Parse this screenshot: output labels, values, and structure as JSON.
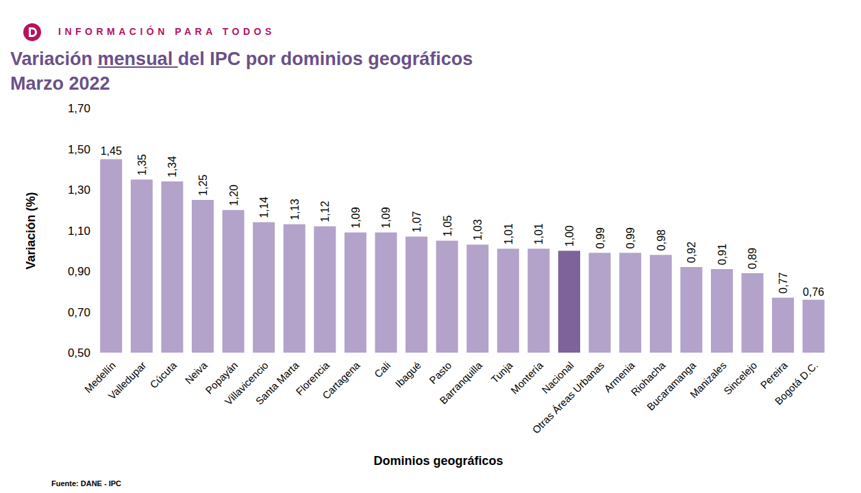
{
  "chart_data": {
    "type": "bar",
    "header": "INFORMACIÓN PARA TODOS",
    "title": "Variación mensual del IPC por dominios geográficos",
    "subtitle": "Marzo 2022",
    "y_label": "Variación (%)",
    "x_label": "Dominios geográficos",
    "source": "Fuente: DANE - IPC",
    "categories": [
      "Medellín",
      "Valledupar",
      "Cúcuta",
      "Neiva",
      "Popayán",
      "Villavicencio",
      "Santa Marta",
      "Florencia",
      "Cartagena",
      "Cali",
      "Ibagué",
      "Pasto",
      "Barranquilla",
      "Tunja",
      "Montería",
      "Nacional",
      "Otras Áreas Urbanas",
      "Armenia",
      "Riohacha",
      "Bucaramanga",
      "Manizales",
      "Sincelejo",
      "Pereira",
      "Bogotá D.C."
    ],
    "values": [
      1.45,
      1.35,
      1.34,
      1.25,
      1.2,
      1.14,
      1.13,
      1.12,
      1.09,
      1.09,
      1.07,
      1.05,
      1.03,
      1.01,
      1.01,
      1.0,
      0.99,
      0.99,
      0.98,
      0.92,
      0.91,
      0.89,
      0.77,
      0.76
    ],
    "value_labels": [
      "1,45",
      "1,35",
      "1,34",
      "1,25",
      "1,20",
      "1,14",
      "1,13",
      "1,12",
      "1,09",
      "1,09",
      "1,07",
      "1,05",
      "1,03",
      "1,01",
      "1,01",
      "1,00",
      "0,99",
      "0,99",
      "0,98",
      "0,92",
      "0,91",
      "0,89",
      "0,77",
      "0,76"
    ],
    "colors": [
      "#b3a2c9",
      "#b3a2c9",
      "#b3a2c9",
      "#b3a2c9",
      "#b3a2c9",
      "#b3a2c9",
      "#b3a2c9",
      "#b3a2c9",
      "#b3a2c9",
      "#b3a2c9",
      "#b3a2c9",
      "#b3a2c9",
      "#b3a2c9",
      "#b3a2c9",
      "#b3a2c9",
      "#7d6399",
      "#b3a2c9",
      "#b3a2c9",
      "#b3a2c9",
      "#b3a2c9",
      "#b3a2c9",
      "#b3a2c9",
      "#b3a2c9",
      "#b3a2c9"
    ],
    "ylim": [
      0.5,
      1.7
    ],
    "yticks": [
      {
        "value": 0.5,
        "label": "0,50"
      },
      {
        "value": 0.7,
        "label": "0,70"
      },
      {
        "value": 0.9,
        "label": "0,90"
      },
      {
        "value": 1.1,
        "label": "1,10"
      },
      {
        "value": 1.3,
        "label": "1,30"
      },
      {
        "value": 1.5,
        "label": "1,50"
      },
      {
        "value": 1.7,
        "label": "1,70"
      }
    ],
    "grid": false,
    "data_labels": true
  }
}
